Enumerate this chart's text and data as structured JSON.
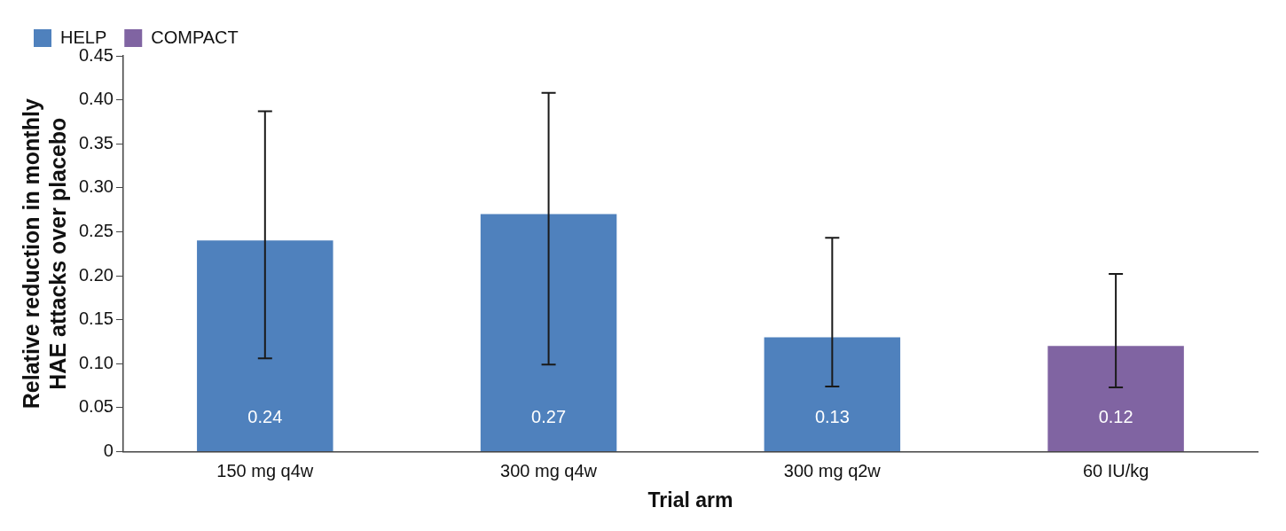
{
  "chart_data": {
    "type": "bar",
    "xlabel": "Trial arm",
    "ylabel": "Relative reduction in monthly HAE attacks over placebo",
    "categories": [
      "150 mg q4w",
      "300 mg q4w",
      "300 mg q2w",
      "60 IU/kg"
    ],
    "series": [
      {
        "name": "HELP",
        "color": "#4f81bd",
        "values": [
          0.24,
          0.27,
          0.13,
          null
        ],
        "errors": [
          [
            0.106,
            0.387
          ],
          [
            0.099,
            0.408
          ],
          [
            0.074,
            0.243
          ],
          null
        ]
      },
      {
        "name": "COMPACT",
        "color": "#8064a2",
        "values": [
          null,
          null,
          null,
          0.12
        ],
        "errors": [
          null,
          null,
          null,
          [
            0.073,
            0.202
          ]
        ]
      }
    ],
    "ylim": [
      0,
      0.45
    ],
    "yticks": [
      0,
      0.05,
      {
        "value": 0.1,
        "label": "0.10"
      },
      0.15,
      {
        "value": 0.2,
        "label": "0.20"
      },
      0.25,
      {
        "value": 0.3,
        "label": "0.30"
      },
      0.35,
      {
        "value": 0.4,
        "label": "0.40"
      },
      0.45
    ],
    "data_labels": true,
    "legend": "top left",
    "grid": false
  }
}
